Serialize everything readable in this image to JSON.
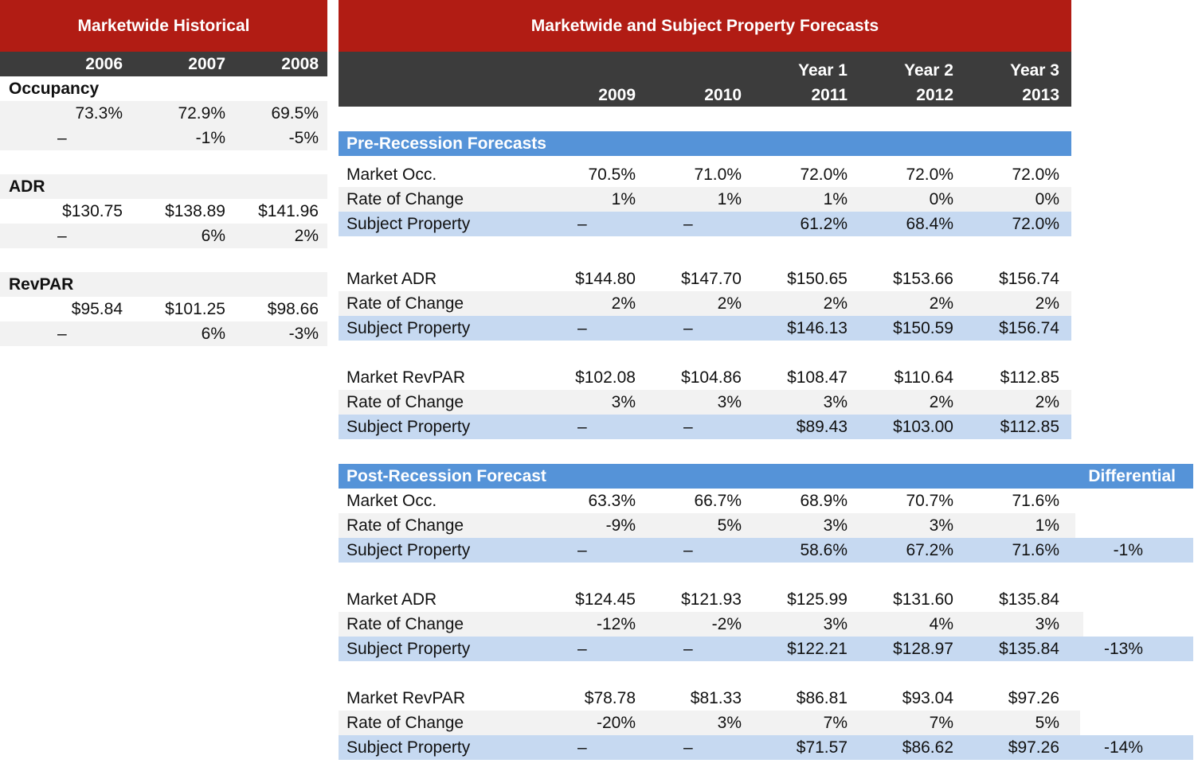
{
  "historical": {
    "title": "Marketwide Historical",
    "years": [
      "2006",
      "2007",
      "2008"
    ],
    "groups": [
      {
        "name": "Occupancy",
        "values": [
          "73.3%",
          "72.9%",
          "69.5%"
        ],
        "changes": [
          "–",
          "-1%",
          "-5%"
        ]
      },
      {
        "name": "ADR",
        "values": [
          "$130.75",
          "$138.89",
          "$141.96"
        ],
        "changes": [
          "–",
          "6%",
          "2%"
        ]
      },
      {
        "name": "RevPAR",
        "values": [
          "$95.84",
          "$101.25",
          "$98.66"
        ],
        "changes": [
          "–",
          "6%",
          "-3%"
        ]
      }
    ]
  },
  "forecast": {
    "title": "Marketwide and Subject Property Forecasts",
    "header_top": [
      "",
      "",
      "Year 1",
      "Year 2",
      "Year 3"
    ],
    "header_bottom": [
      "2009",
      "2010",
      "2011",
      "2012",
      "2013"
    ],
    "pre": {
      "title": "Pre-Recession Forecasts",
      "rows": [
        {
          "label": "Market Occ.",
          "values": [
            "70.5%",
            "71.0%",
            "72.0%",
            "72.0%",
            "72.0%"
          ]
        },
        {
          "label": "Rate of Change",
          "values": [
            "1%",
            "1%",
            "1%",
            "0%",
            "0%"
          ]
        },
        {
          "label": "Subject Property",
          "values": [
            "–",
            "–",
            "61.2%",
            "68.4%",
            "72.0%"
          ]
        },
        {
          "label": "Market ADR",
          "values": [
            "$144.80",
            "$147.70",
            "$150.65",
            "$153.66",
            "$156.74"
          ]
        },
        {
          "label": "Rate of Change",
          "values": [
            "2%",
            "2%",
            "2%",
            "2%",
            "2%"
          ]
        },
        {
          "label": "Subject Property",
          "values": [
            "–",
            "–",
            "$146.13",
            "$150.59",
            "$156.74"
          ]
        },
        {
          "label": "Market RevPAR",
          "values": [
            "$102.08",
            "$104.86",
            "$108.47",
            "$110.64",
            "$112.85"
          ]
        },
        {
          "label": "Rate of Change",
          "values": [
            "3%",
            "3%",
            "3%",
            "2%",
            "2%"
          ]
        },
        {
          "label": "Subject Property",
          "values": [
            "–",
            "–",
            "$89.43",
            "$103.00",
            "$112.85"
          ]
        }
      ]
    },
    "post": {
      "title": "Post-Recession Forecast",
      "differential_label": "Differential",
      "rows": [
        {
          "label": "Market Occ.",
          "values": [
            "63.3%",
            "66.7%",
            "68.9%",
            "70.7%",
            "71.6%"
          ],
          "diff": ""
        },
        {
          "label": "Rate of Change",
          "values": [
            "-9%",
            "5%",
            "3%",
            "3%",
            "1%"
          ],
          "diff": ""
        },
        {
          "label": "Subject Property",
          "values": [
            "–",
            "–",
            "58.6%",
            "67.2%",
            "71.6%"
          ],
          "diff": "-1%"
        },
        {
          "label": "Market ADR",
          "values": [
            "$124.45",
            "$121.93",
            "$125.99",
            "$131.60",
            "$135.84"
          ],
          "diff": ""
        },
        {
          "label": "Rate of Change",
          "values": [
            "-12%",
            "-2%",
            "3%",
            "4%",
            "3%"
          ],
          "diff": ""
        },
        {
          "label": "Subject Property",
          "values": [
            "–",
            "–",
            "$122.21",
            "$128.97",
            "$135.84"
          ],
          "diff": "-13%"
        },
        {
          "label": "Market RevPAR",
          "values": [
            "$78.78",
            "$81.33",
            "$86.81",
            "$93.04",
            "$97.26"
          ],
          "diff": ""
        },
        {
          "label": "Rate of Change",
          "values": [
            "-20%",
            "3%",
            "7%",
            "7%",
            "5%"
          ],
          "diff": ""
        },
        {
          "label": "Subject Property",
          "values": [
            "–",
            "–",
            "$71.57",
            "$86.62",
            "$97.26"
          ],
          "diff": "-14%"
        }
      ]
    }
  }
}
